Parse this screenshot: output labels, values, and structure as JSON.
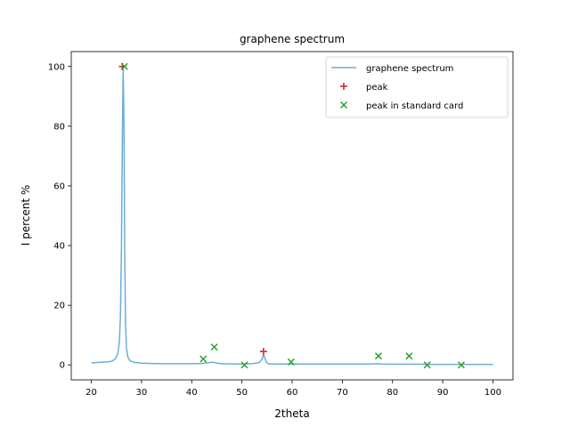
{
  "chart_data": {
    "type": "line",
    "title": "graphene spectrum",
    "xlabel": "2theta",
    "ylabel": "I percent %",
    "xlim": [
      16.0,
      104.0
    ],
    "ylim": [
      -5.0,
      105.0
    ],
    "xticks": [
      20,
      30,
      40,
      50,
      60,
      70,
      80,
      90,
      100
    ],
    "yticks": [
      0,
      20,
      40,
      60,
      80,
      100
    ],
    "grid": false,
    "legend_position": "top-right",
    "colors": {
      "spectrum": "#6baed6",
      "peak": "#d62728",
      "standard": "#2ca02c"
    },
    "series": [
      {
        "name": "graphene spectrum",
        "kind": "line",
        "x": [
          20,
          21,
          22,
          23,
          24,
          24.8,
          25.3,
          25.6,
          25.8,
          26.0,
          26.2,
          26.35,
          26.5,
          26.65,
          26.8,
          27.0,
          27.3,
          27.8,
          28.5,
          30,
          32,
          35,
          38,
          40,
          42,
          43,
          44,
          44.5,
          45,
          46,
          48,
          50,
          52,
          53.5,
          54.0,
          54.3,
          54.6,
          54.9,
          55.3,
          56,
          58,
          60,
          65,
          70,
          75,
          77,
          78,
          80,
          83,
          85,
          87,
          90,
          93,
          95,
          98,
          100
        ],
        "y": [
          0.7,
          0.8,
          0.9,
          1.0,
          1.2,
          2.0,
          4.0,
          8.0,
          16.0,
          40.0,
          80.0,
          100.0,
          80.0,
          40.0,
          15.0,
          5.5,
          2.5,
          1.3,
          0.9,
          0.6,
          0.5,
          0.4,
          0.4,
          0.4,
          0.5,
          0.7,
          0.9,
          0.8,
          0.6,
          0.4,
          0.35,
          0.3,
          0.4,
          0.8,
          2.0,
          3.5,
          2.0,
          0.8,
          0.4,
          0.3,
          0.3,
          0.3,
          0.3,
          0.3,
          0.3,
          0.4,
          0.3,
          0.25,
          0.25,
          0.25,
          0.2,
          0.2,
          0.2,
          0.2,
          0.2,
          0.2
        ]
      },
      {
        "name": "peak",
        "kind": "marker-plus",
        "x": [
          26.2,
          54.3
        ],
        "y": [
          100.0,
          4.5
        ]
      },
      {
        "name": "peak in standard card",
        "kind": "marker-x",
        "x": [
          26.6,
          42.3,
          44.5,
          50.5,
          59.8,
          77.2,
          83.3,
          86.9,
          93.7
        ],
        "y": [
          100.0,
          2.0,
          6.0,
          0.0,
          1.0,
          3.0,
          3.0,
          0.0,
          0.0
        ]
      }
    ]
  }
}
